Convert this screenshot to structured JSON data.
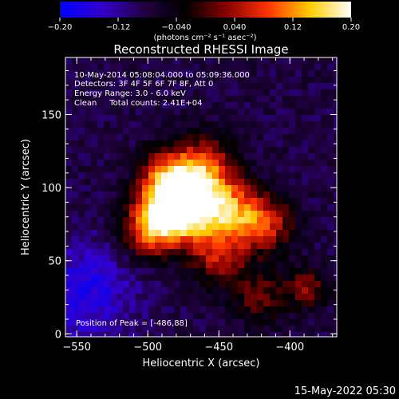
{
  "colorbar": {
    "ticks": [
      "-0.20",
      "-0.12",
      "-0.040",
      "0.040",
      "0.12",
      "0.20"
    ],
    "min": -0.2,
    "max": 0.2,
    "stops": [
      "#0000ff",
      "#3300cc",
      "#220044",
      "#000000",
      "#880000",
      "#ff3300",
      "#ffcc00",
      "#ffffff"
    ],
    "unit_label": "(photons cm⁻² s⁻¹ asec⁻²)"
  },
  "chart_data": {
    "type": "heatmap",
    "title": "Reconstructed RHESSI Image",
    "xlabel": "Heliocentric X (arcsec)",
    "ylabel": "Heliocentric Y (arcsec)",
    "xlim": [
      -558,
      -367
    ],
    "ylim": [
      -2,
      189
    ],
    "xticks": [
      -550,
      -500,
      -450,
      -400
    ],
    "xtick_labels": [
      "−550",
      "−500",
      "−450",
      "−400"
    ],
    "yticks": [
      0,
      50,
      100,
      150
    ],
    "yticks_labels": [
      "0",
      "50",
      "100",
      "150"
    ],
    "peak": [
      -486,
      88
    ],
    "annotations": [
      "10-May-2014 05:08:04.000 to 05:09:36.000",
      "Detectors: 3F 4F 5F 6F 7F 8F, Att 0",
      "Energy Range: 3.0 - 6.0 keV",
      "Clean     Total counts: 2.41E+04"
    ],
    "peak_label": "Position of Peak = [-486,88]"
  },
  "footer": {
    "date": "15-May-2022 05:30"
  }
}
